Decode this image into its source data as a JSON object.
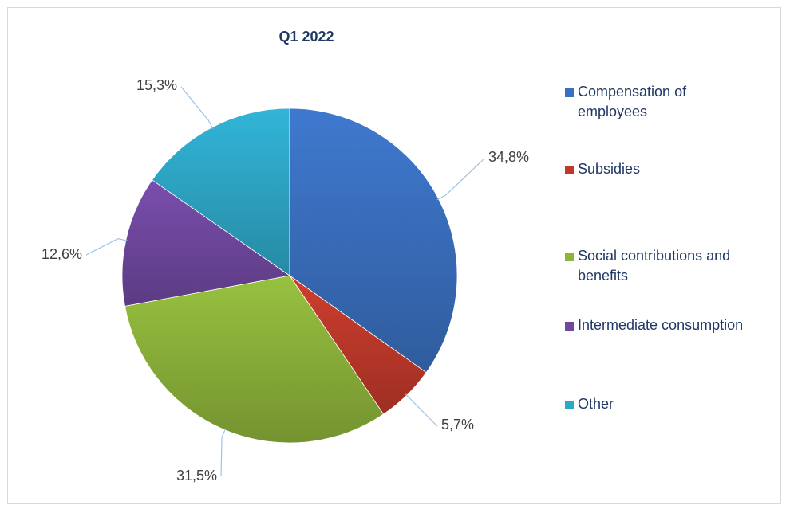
{
  "chart_data": {
    "type": "pie",
    "title": "Q1 2022",
    "legend_position": "right",
    "slices": [
      {
        "label": "Compensation of employees",
        "legend_lines": [
          "Compensation of",
          "employees"
        ],
        "value": 34.8,
        "display": "34,8%",
        "color": "#3a70c0"
      },
      {
        "label": "Subsidies",
        "legend_lines": [
          "Subsidies"
        ],
        "value": 5.7,
        "display": "5,7%",
        "color": "#c0392b"
      },
      {
        "label": "Social contributions and benefits",
        "legend_lines": [
          "Social contributions and",
          "benefits"
        ],
        "value": 31.5,
        "display": "31,5%",
        "color": "#8db33a"
      },
      {
        "label": "Intermediate consumption",
        "legend_lines": [
          "Intermediate consumption"
        ],
        "value": 12.6,
        "display": "12,6%",
        "color": "#7048a0"
      },
      {
        "label": "Other",
        "legend_lines": [
          "Other"
        ],
        "value": 15.3,
        "display": "15,3%",
        "color": "#2ea8c8"
      }
    ]
  }
}
